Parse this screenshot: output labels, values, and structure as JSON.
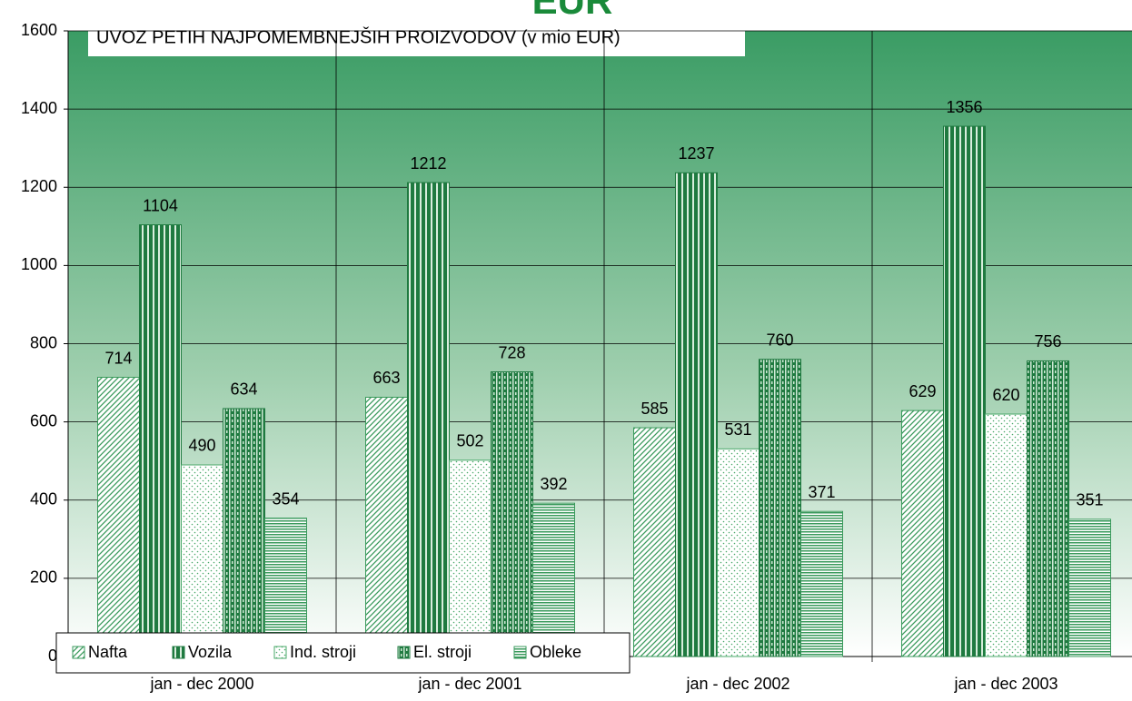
{
  "chart_data": {
    "type": "bar",
    "title": "EUR",
    "subtitle": "UVOZ PETIH NAJPOMEMBNEJŠIH PROIZVODOV (v mio EUR)",
    "categories": [
      "jan - dec 2000",
      "jan - dec 2001",
      "jan - dec 2002",
      "jan - dec 2003"
    ],
    "series": [
      {
        "name": "Nafta",
        "color": "#3a9a5c",
        "pattern": "diagonal",
        "values": [
          714,
          663,
          585,
          629
        ]
      },
      {
        "name": "Vozila",
        "color": "#1f7a40",
        "pattern": "vertical",
        "values": [
          1104,
          1212,
          1237,
          1356
        ]
      },
      {
        "name": "Ind. stroji",
        "color": "#4aa86a",
        "pattern": "dots",
        "values": [
          490,
          502,
          531,
          620
        ]
      },
      {
        "name": "El. stroji",
        "color": "#1f7a40",
        "pattern": "grid",
        "values": [
          634,
          728,
          760,
          756
        ]
      },
      {
        "name": "Obleke",
        "color": "#3a9a5c",
        "pattern": "horizontal",
        "values": [
          354,
          392,
          371,
          351
        ]
      }
    ],
    "ylim": [
      0,
      1600
    ],
    "yticks": [
      0,
      200,
      400,
      600,
      800,
      1000,
      1200,
      1400,
      1600
    ],
    "grid": true,
    "legend": "bottom-left"
  }
}
